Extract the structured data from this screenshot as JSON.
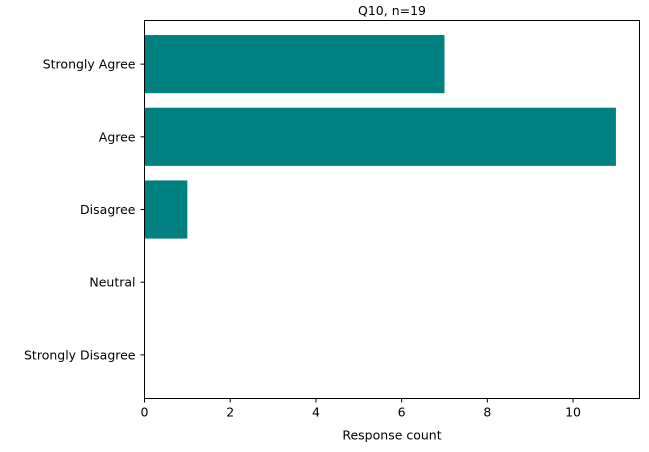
{
  "chart_data": {
    "type": "bar",
    "orientation": "horizontal",
    "title": "Q10, n=19",
    "xlabel": "Response count",
    "ylabel": "",
    "categories": [
      "Strongly Agree",
      "Agree",
      "Disagree",
      "Neutral",
      "Strongly Disagree"
    ],
    "values": [
      7,
      11,
      1,
      0,
      0
    ],
    "xlim": [
      0,
      11.55
    ],
    "xticks": [
      0,
      2,
      4,
      6,
      8,
      10
    ],
    "grid": false,
    "bar_color": "#008080"
  }
}
